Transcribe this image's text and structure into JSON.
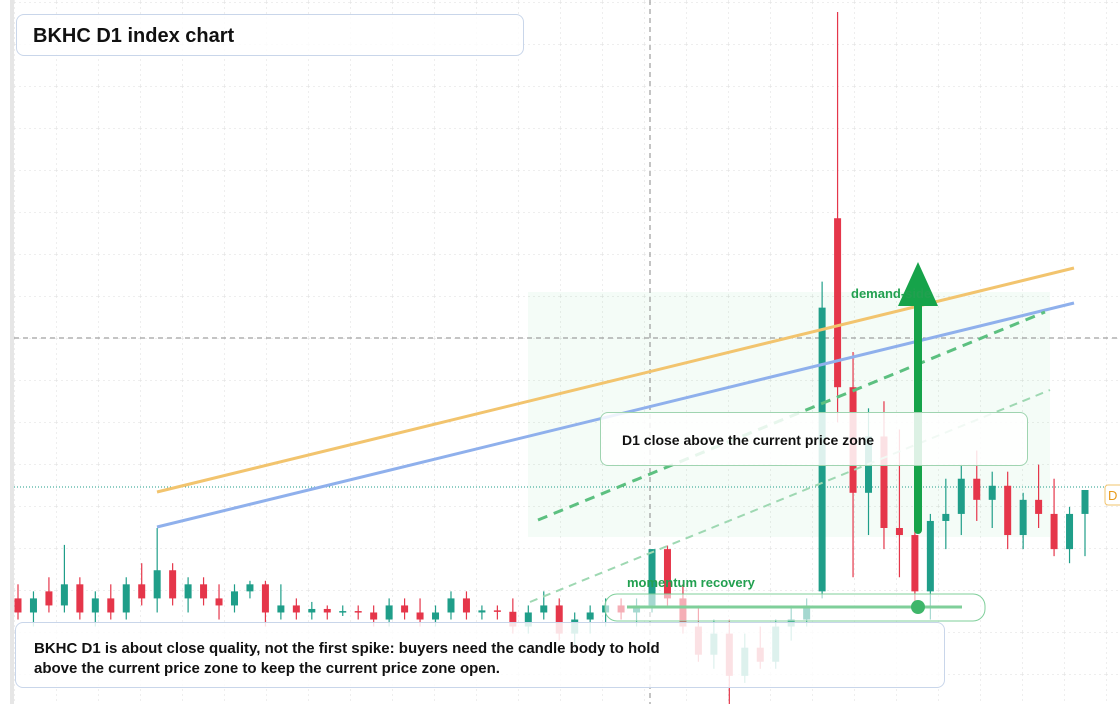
{
  "chart_data": {
    "type": "candlestick",
    "title": "BKHC D1 index chart",
    "ylim": [
      0,
      100
    ],
    "up_color": "#1f9e89",
    "down_color": "#e5364a",
    "price_label": "D",
    "annotations": {
      "demand": "demand-side",
      "zone": "D1 close above the current price zone",
      "momentum": "momentum recovery",
      "note": "BKHC D1 is about close quality, not the first spike: buyers need the candle body to hold above the current price zone to keep the current price zone open."
    },
    "ohlc": [
      [
        15,
        17,
        12,
        13
      ],
      [
        13,
        16,
        11,
        15
      ],
      [
        16,
        18,
        13,
        14
      ],
      [
        14,
        22.6,
        13,
        17
      ],
      [
        17,
        18,
        12,
        13
      ],
      [
        13,
        16,
        11,
        15
      ],
      [
        15,
        17,
        12,
        13
      ],
      [
        13,
        18,
        12,
        17
      ],
      [
        17,
        20,
        14,
        15
      ],
      [
        15,
        25,
        13,
        19
      ],
      [
        19,
        20,
        14,
        15
      ],
      [
        15,
        18,
        13,
        17
      ],
      [
        17,
        18,
        14,
        15
      ],
      [
        15,
        17,
        12,
        14
      ],
      [
        14,
        17,
        13,
        16
      ],
      [
        16,
        17.5,
        15,
        17
      ],
      [
        17,
        17.5,
        11,
        13
      ],
      [
        13,
        17,
        12,
        14
      ],
      [
        14,
        15,
        12,
        13
      ],
      [
        13,
        14.5,
        12,
        13.5
      ],
      [
        13.5,
        14,
        12,
        13
      ],
      [
        13,
        14,
        12.5,
        13.2
      ],
      [
        13.2,
        14,
        12,
        13
      ],
      [
        13,
        14,
        11,
        12
      ],
      [
        12,
        15,
        11,
        14
      ],
      [
        14,
        15,
        12,
        13
      ],
      [
        13,
        15,
        11,
        12
      ],
      [
        12,
        14,
        11,
        13
      ],
      [
        13,
        16,
        12,
        15
      ],
      [
        15,
        16,
        12,
        13
      ],
      [
        13,
        14,
        12,
        13.3
      ],
      [
        13.3,
        14,
        12,
        13.1
      ],
      [
        13.1,
        15,
        10,
        11
      ],
      [
        11,
        14,
        10,
        13
      ],
      [
        13,
        16,
        12,
        14
      ],
      [
        14,
        15,
        9,
        10
      ],
      [
        10,
        13,
        8,
        12
      ],
      [
        12,
        14,
        10,
        13
      ],
      [
        13,
        15,
        11,
        14
      ],
      [
        14,
        15,
        12,
        13
      ],
      [
        13,
        15,
        11,
        14
      ],
      [
        14,
        22,
        13,
        22
      ],
      [
        22,
        22.5,
        14,
        15
      ],
      [
        15,
        17,
        10,
        11
      ],
      [
        11,
        14,
        6,
        7
      ],
      [
        7,
        12,
        5,
        10
      ],
      [
        10,
        12,
        0,
        4
      ],
      [
        4,
        10,
        3,
        8
      ],
      [
        8,
        11,
        5,
        6
      ],
      [
        6,
        12,
        5,
        11
      ],
      [
        11,
        14,
        9,
        12
      ],
      [
        12,
        15,
        11,
        14
      ],
      [
        16,
        60,
        15,
        56.3
      ],
      [
        69,
        98.3,
        40,
        45
      ],
      [
        45,
        50,
        18,
        30
      ],
      [
        30,
        42,
        24,
        38
      ],
      [
        38,
        43,
        22,
        25
      ],
      [
        25,
        39,
        18,
        24
      ],
      [
        24,
        38,
        14,
        16
      ],
      [
        16,
        27,
        12,
        26
      ],
      [
        26,
        32,
        22,
        27
      ],
      [
        27,
        34,
        24,
        32
      ],
      [
        32,
        36,
        26,
        29
      ],
      [
        29,
        33,
        25,
        31
      ],
      [
        31,
        33,
        22,
        24
      ],
      [
        24,
        30,
        22,
        29
      ],
      [
        29,
        34,
        25,
        27
      ],
      [
        27,
        32,
        21,
        22
      ],
      [
        22,
        28,
        20,
        27
      ],
      [
        27,
        30,
        21,
        30.4
      ]
    ]
  }
}
